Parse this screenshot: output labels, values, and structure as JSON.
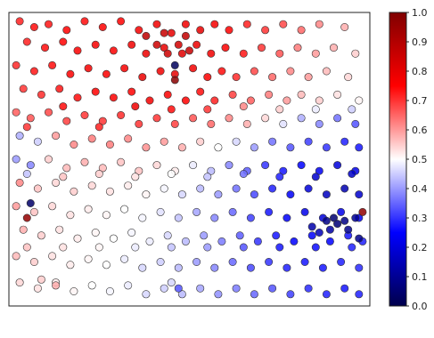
{
  "chart_data": {
    "type": "scatter",
    "title": "",
    "xlabel": "",
    "ylabel": "",
    "xlim": [
      0,
      1
    ],
    "ylim": [
      0,
      1
    ],
    "grid": false,
    "legend": "none",
    "colormap": "seismic",
    "colormap_stops": [
      "#00004c",
      "#0000ff",
      "#ffffff",
      "#ff0000",
      "#800000"
    ],
    "colorbar": {
      "range": [
        0.0,
        1.0
      ],
      "ticks": [
        "0.0",
        "0.1",
        "0.2",
        "0.3",
        "0.4",
        "0.5",
        "0.6",
        "0.7",
        "0.8",
        "0.9",
        "1.0"
      ],
      "tick_values": [
        0.0,
        0.1,
        0.2,
        0.3,
        0.4,
        0.5,
        0.6,
        0.7,
        0.8,
        0.9,
        1.0
      ]
    },
    "points": [
      [
        0.03,
        0.97,
        0.72
      ],
      [
        0.07,
        0.95,
        0.74
      ],
      [
        0.11,
        0.96,
        0.73
      ],
      [
        0.16,
        0.94,
        0.75
      ],
      [
        0.21,
        0.97,
        0.74
      ],
      [
        0.26,
        0.95,
        0.76
      ],
      [
        0.31,
        0.97,
        0.75
      ],
      [
        0.36,
        0.94,
        0.77
      ],
      [
        0.41,
        0.96,
        0.78
      ],
      [
        0.45,
        0.93,
        0.8
      ],
      [
        0.49,
        0.96,
        0.78
      ],
      [
        0.53,
        0.94,
        0.8
      ],
      [
        0.57,
        0.96,
        0.77
      ],
      [
        0.61,
        0.94,
        0.75
      ],
      [
        0.66,
        0.96,
        0.72
      ],
      [
        0.71,
        0.94,
        0.7
      ],
      [
        0.76,
        0.96,
        0.68
      ],
      [
        0.81,
        0.94,
        0.65
      ],
      [
        0.86,
        0.96,
        0.62
      ],
      [
        0.93,
        0.95,
        0.58
      ],
      [
        0.05,
        0.9,
        0.72
      ],
      [
        0.1,
        0.88,
        0.74
      ],
      [
        0.15,
        0.9,
        0.75
      ],
      [
        0.19,
        0.87,
        0.76
      ],
      [
        0.24,
        0.89,
        0.77
      ],
      [
        0.29,
        0.87,
        0.76
      ],
      [
        0.34,
        0.89,
        0.78
      ],
      [
        0.38,
        0.86,
        0.79
      ],
      [
        0.43,
        0.88,
        0.8
      ],
      [
        0.48,
        0.86,
        0.81
      ],
      [
        0.52,
        0.89,
        0.79
      ],
      [
        0.56,
        0.86,
        0.78
      ],
      [
        0.6,
        0.88,
        0.76
      ],
      [
        0.65,
        0.86,
        0.73
      ],
      [
        0.7,
        0.88,
        0.7
      ],
      [
        0.75,
        0.86,
        0.67
      ],
      [
        0.8,
        0.88,
        0.63
      ],
      [
        0.85,
        0.86,
        0.6
      ],
      [
        0.9,
        0.88,
        0.58
      ],
      [
        0.96,
        0.86,
        0.55
      ],
      [
        0.02,
        0.82,
        0.71
      ],
      [
        0.07,
        0.8,
        0.73
      ],
      [
        0.12,
        0.82,
        0.74
      ],
      [
        0.17,
        0.79,
        0.76
      ],
      [
        0.22,
        0.81,
        0.77
      ],
      [
        0.27,
        0.79,
        0.76
      ],
      [
        0.32,
        0.81,
        0.77
      ],
      [
        0.37,
        0.78,
        0.79
      ],
      [
        0.42,
        0.8,
        0.78
      ],
      [
        0.46,
        0.79,
        0.8
      ],
      [
        0.51,
        0.81,
        0.78
      ],
      [
        0.55,
        0.78,
        0.76
      ],
      [
        0.59,
        0.8,
        0.74
      ],
      [
        0.63,
        0.78,
        0.71
      ],
      [
        0.68,
        0.8,
        0.68
      ],
      [
        0.73,
        0.78,
        0.65
      ],
      [
        0.78,
        0.8,
        0.62
      ],
      [
        0.83,
        0.78,
        0.6
      ],
      [
        0.88,
        0.8,
        0.57
      ],
      [
        0.94,
        0.78,
        0.54
      ],
      [
        0.04,
        0.74,
        0.7
      ],
      [
        0.09,
        0.72,
        0.71
      ],
      [
        0.14,
        0.74,
        0.73
      ],
      [
        0.19,
        0.71,
        0.74
      ],
      [
        0.24,
        0.73,
        0.75
      ],
      [
        0.29,
        0.71,
        0.76
      ],
      [
        0.34,
        0.73,
        0.75
      ],
      [
        0.39,
        0.7,
        0.77
      ],
      [
        0.44,
        0.72,
        0.76
      ],
      [
        0.49,
        0.7,
        0.75
      ],
      [
        0.53,
        0.73,
        0.74
      ],
      [
        0.57,
        0.7,
        0.72
      ],
      [
        0.62,
        0.72,
        0.69
      ],
      [
        0.67,
        0.7,
        0.66
      ],
      [
        0.72,
        0.72,
        0.63
      ],
      [
        0.77,
        0.7,
        0.6
      ],
      [
        0.81,
        0.72,
        0.57
      ],
      [
        0.86,
        0.7,
        0.55
      ],
      [
        0.91,
        0.72,
        0.53
      ],
      [
        0.97,
        0.7,
        0.51
      ],
      [
        0.02,
        0.66,
        0.66
      ],
      [
        0.06,
        0.64,
        0.67
      ],
      [
        0.11,
        0.66,
        0.68
      ],
      [
        0.16,
        0.63,
        0.69
      ],
      [
        0.21,
        0.65,
        0.7
      ],
      [
        0.26,
        0.63,
        0.7
      ],
      [
        0.31,
        0.65,
        0.71
      ],
      [
        0.36,
        0.62,
        0.7
      ],
      [
        0.41,
        0.64,
        0.7
      ],
      [
        0.46,
        0.62,
        0.69
      ],
      [
        0.51,
        0.64,
        0.67
      ],
      [
        0.56,
        0.62,
        0.65
      ],
      [
        0.61,
        0.64,
        0.62
      ],
      [
        0.66,
        0.62,
        0.58
      ],
      [
        0.71,
        0.64,
        0.54
      ],
      [
        0.76,
        0.62,
        0.47
      ],
      [
        0.81,
        0.64,
        0.42
      ],
      [
        0.86,
        0.62,
        0.38
      ],
      [
        0.91,
        0.64,
        0.36
      ],
      [
        0.96,
        0.62,
        0.33
      ],
      [
        0.03,
        0.58,
        0.42
      ],
      [
        0.08,
        0.56,
        0.45
      ],
      [
        0.13,
        0.58,
        0.6
      ],
      [
        0.18,
        0.55,
        0.62
      ],
      [
        0.23,
        0.57,
        0.63
      ],
      [
        0.28,
        0.55,
        0.63
      ],
      [
        0.33,
        0.57,
        0.62
      ],
      [
        0.38,
        0.54,
        0.61
      ],
      [
        0.43,
        0.56,
        0.6
      ],
      [
        0.48,
        0.54,
        0.58
      ],
      [
        0.53,
        0.56,
        0.55
      ],
      [
        0.58,
        0.54,
        0.5
      ],
      [
        0.63,
        0.56,
        0.46
      ],
      [
        0.68,
        0.54,
        0.4
      ],
      [
        0.73,
        0.56,
        0.36
      ],
      [
        0.78,
        0.54,
        0.33
      ],
      [
        0.83,
        0.56,
        0.31
      ],
      [
        0.88,
        0.54,
        0.3
      ],
      [
        0.93,
        0.56,
        0.28
      ],
      [
        0.97,
        0.54,
        0.27
      ],
      [
        0.02,
        0.5,
        0.4
      ],
      [
        0.06,
        0.48,
        0.38
      ],
      [
        0.11,
        0.5,
        0.55
      ],
      [
        0.16,
        0.47,
        0.57
      ],
      [
        0.21,
        0.49,
        0.58
      ],
      [
        0.26,
        0.47,
        0.57
      ],
      [
        0.31,
        0.49,
        0.56
      ],
      [
        0.36,
        0.46,
        0.56
      ],
      [
        0.41,
        0.48,
        0.54
      ],
      [
        0.46,
        0.46,
        0.52
      ],
      [
        0.51,
        0.48,
        0.48
      ],
      [
        0.56,
        0.46,
        0.43
      ],
      [
        0.61,
        0.48,
        0.38
      ],
      [
        0.66,
        0.46,
        0.34
      ],
      [
        0.71,
        0.48,
        0.3
      ],
      [
        0.76,
        0.46,
        0.27
      ],
      [
        0.81,
        0.48,
        0.25
      ],
      [
        0.86,
        0.46,
        0.23
      ],
      [
        0.91,
        0.48,
        0.2
      ],
      [
        0.96,
        0.46,
        0.22
      ],
      [
        0.03,
        0.42,
        0.62
      ],
      [
        0.08,
        0.4,
        0.56
      ],
      [
        0.13,
        0.42,
        0.54
      ],
      [
        0.18,
        0.39,
        0.55
      ],
      [
        0.23,
        0.41,
        0.54
      ],
      [
        0.28,
        0.39,
        0.53
      ],
      [
        0.33,
        0.41,
        0.52
      ],
      [
        0.38,
        0.38,
        0.51
      ],
      [
        0.43,
        0.4,
        0.49
      ],
      [
        0.48,
        0.38,
        0.46
      ],
      [
        0.53,
        0.4,
        0.43
      ],
      [
        0.58,
        0.38,
        0.4
      ],
      [
        0.63,
        0.4,
        0.36
      ],
      [
        0.68,
        0.38,
        0.32
      ],
      [
        0.73,
        0.4,
        0.28
      ],
      [
        0.78,
        0.38,
        0.24
      ],
      [
        0.83,
        0.4,
        0.2
      ],
      [
        0.88,
        0.38,
        0.16
      ],
      [
        0.93,
        0.4,
        0.14
      ],
      [
        0.97,
        0.38,
        0.18
      ],
      [
        0.02,
        0.34,
        0.6
      ],
      [
        0.07,
        0.32,
        0.56
      ],
      [
        0.12,
        0.34,
        0.54
      ],
      [
        0.17,
        0.31,
        0.53
      ],
      [
        0.22,
        0.33,
        0.52
      ],
      [
        0.27,
        0.31,
        0.51
      ],
      [
        0.32,
        0.33,
        0.5
      ],
      [
        0.37,
        0.3,
        0.49
      ],
      [
        0.42,
        0.32,
        0.47
      ],
      [
        0.47,
        0.3,
        0.44
      ],
      [
        0.52,
        0.32,
        0.41
      ],
      [
        0.57,
        0.3,
        0.38
      ],
      [
        0.62,
        0.32,
        0.35
      ],
      [
        0.67,
        0.3,
        0.31
      ],
      [
        0.72,
        0.32,
        0.27
      ],
      [
        0.77,
        0.3,
        0.24
      ],
      [
        0.82,
        0.32,
        0.22
      ],
      [
        0.87,
        0.3,
        0.2
      ],
      [
        0.92,
        0.32,
        0.22
      ],
      [
        0.97,
        0.3,
        0.24
      ],
      [
        0.04,
        0.26,
        0.58
      ],
      [
        0.09,
        0.24,
        0.55
      ],
      [
        0.14,
        0.26,
        0.53
      ],
      [
        0.19,
        0.23,
        0.52
      ],
      [
        0.24,
        0.25,
        0.51
      ],
      [
        0.29,
        0.23,
        0.5
      ],
      [
        0.34,
        0.25,
        0.49
      ],
      [
        0.39,
        0.22,
        0.48
      ],
      [
        0.44,
        0.24,
        0.46
      ],
      [
        0.49,
        0.22,
        0.43
      ],
      [
        0.54,
        0.24,
        0.4
      ],
      [
        0.59,
        0.22,
        0.37
      ],
      [
        0.64,
        0.24,
        0.34
      ],
      [
        0.69,
        0.22,
        0.3
      ],
      [
        0.74,
        0.24,
        0.27
      ],
      [
        0.79,
        0.22,
        0.25
      ],
      [
        0.84,
        0.24,
        0.24
      ],
      [
        0.89,
        0.22,
        0.25
      ],
      [
        0.94,
        0.24,
        0.27
      ],
      [
        0.98,
        0.22,
        0.28
      ],
      [
        0.02,
        0.17,
        0.57
      ],
      [
        0.07,
        0.15,
        0.55
      ],
      [
        0.12,
        0.17,
        0.53
      ],
      [
        0.17,
        0.14,
        0.52
      ],
      [
        0.22,
        0.16,
        0.51
      ],
      [
        0.27,
        0.14,
        0.5
      ],
      [
        0.32,
        0.16,
        0.48
      ],
      [
        0.37,
        0.13,
        0.46
      ],
      [
        0.42,
        0.15,
        0.45
      ],
      [
        0.47,
        0.13,
        0.43
      ],
      [
        0.52,
        0.15,
        0.4
      ],
      [
        0.57,
        0.13,
        0.38
      ],
      [
        0.62,
        0.15,
        0.35
      ],
      [
        0.67,
        0.13,
        0.32
      ],
      [
        0.72,
        0.15,
        0.3
      ],
      [
        0.77,
        0.13,
        0.28
      ],
      [
        0.82,
        0.15,
        0.27
      ],
      [
        0.87,
        0.13,
        0.27
      ],
      [
        0.92,
        0.15,
        0.28
      ],
      [
        0.97,
        0.13,
        0.29
      ],
      [
        0.03,
        0.08,
        0.54
      ],
      [
        0.08,
        0.06,
        0.53
      ],
      [
        0.13,
        0.08,
        0.52
      ],
      [
        0.18,
        0.05,
        0.51
      ],
      [
        0.23,
        0.07,
        0.5
      ],
      [
        0.28,
        0.05,
        0.49
      ],
      [
        0.33,
        0.07,
        0.48
      ],
      [
        0.38,
        0.04,
        0.46
      ],
      [
        0.43,
        0.06,
        0.45
      ],
      [
        0.48,
        0.04,
        0.43
      ],
      [
        0.53,
        0.06,
        0.41
      ],
      [
        0.58,
        0.04,
        0.39
      ],
      [
        0.63,
        0.06,
        0.37
      ],
      [
        0.68,
        0.04,
        0.35
      ],
      [
        0.73,
        0.06,
        0.33
      ],
      [
        0.78,
        0.04,
        0.31
      ],
      [
        0.83,
        0.06,
        0.29
      ],
      [
        0.88,
        0.04,
        0.28
      ],
      [
        0.93,
        0.06,
        0.27
      ],
      [
        0.97,
        0.04,
        0.28
      ],
      [
        0.05,
        0.61,
        0.7
      ],
      [
        0.15,
        0.68,
        0.74
      ],
      [
        0.25,
        0.61,
        0.72
      ],
      [
        0.35,
        0.68,
        0.78
      ],
      [
        0.45,
        0.67,
        0.74
      ],
      [
        0.55,
        0.67,
        0.7
      ],
      [
        0.65,
        0.68,
        0.62
      ],
      [
        0.75,
        0.67,
        0.55
      ],
      [
        0.85,
        0.67,
        0.48
      ],
      [
        0.95,
        0.67,
        0.45
      ],
      [
        0.05,
        0.45,
        0.44
      ],
      [
        0.15,
        0.44,
        0.56
      ],
      [
        0.25,
        0.45,
        0.55
      ],
      [
        0.35,
        0.44,
        0.53
      ],
      [
        0.45,
        0.45,
        0.5
      ],
      [
        0.55,
        0.44,
        0.44
      ],
      [
        0.65,
        0.45,
        0.36
      ],
      [
        0.75,
        0.44,
        0.28
      ],
      [
        0.85,
        0.44,
        0.18
      ],
      [
        0.95,
        0.45,
        0.17
      ],
      [
        0.05,
        0.2,
        0.56
      ],
      [
        0.15,
        0.2,
        0.53
      ],
      [
        0.25,
        0.2,
        0.51
      ],
      [
        0.35,
        0.2,
        0.48
      ],
      [
        0.45,
        0.2,
        0.44
      ],
      [
        0.55,
        0.2,
        0.4
      ],
      [
        0.65,
        0.2,
        0.33
      ],
      [
        0.75,
        0.2,
        0.27
      ],
      [
        0.85,
        0.2,
        0.26
      ],
      [
        0.95,
        0.2,
        0.28
      ],
      [
        0.41,
        0.89,
        0.85
      ],
      [
        0.38,
        0.92,
        0.88
      ],
      [
        0.43,
        0.93,
        0.86
      ],
      [
        0.49,
        0.92,
        0.87
      ],
      [
        0.47,
        0.89,
        0.84
      ],
      [
        0.44,
        0.86,
        0.85
      ],
      [
        0.5,
        0.87,
        0.86
      ],
      [
        0.46,
        0.82,
        0.02
      ],
      [
        0.46,
        0.77,
        0.98
      ],
      [
        0.06,
        0.35,
        0.04
      ],
      [
        0.05,
        0.3,
        0.96
      ],
      [
        0.98,
        0.32,
        0.97
      ],
      [
        0.9,
        0.3,
        0.05
      ],
      [
        0.88,
        0.29,
        0.08
      ],
      [
        0.91,
        0.28,
        0.06
      ],
      [
        0.93,
        0.29,
        0.08
      ],
      [
        0.96,
        0.3,
        0.1
      ],
      [
        0.94,
        0.26,
        0.09
      ],
      [
        0.89,
        0.26,
        0.12
      ],
      [
        0.97,
        0.23,
        0.09
      ],
      [
        0.86,
        0.25,
        0.15
      ],
      [
        0.84,
        0.27,
        0.13
      ],
      [
        0.13,
        0.07,
        0.58
      ],
      [
        0.47,
        0.06,
        0.33
      ],
      [
        0.45,
        0.08,
        0.46
      ],
      [
        0.09,
        0.09,
        0.55
      ]
    ]
  }
}
